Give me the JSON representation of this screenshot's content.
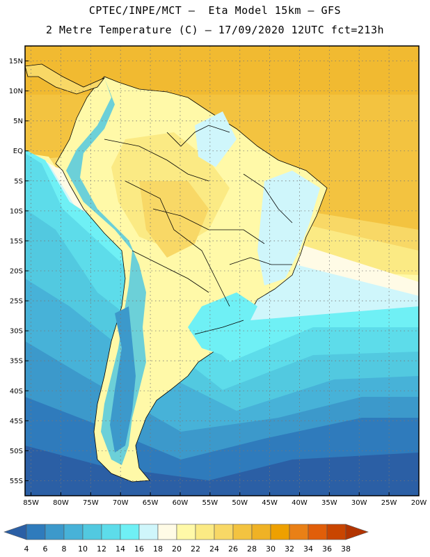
{
  "header": {
    "title_line1": "CPTEC/INPE/MCT –  Eta Model 15km – GFS",
    "title_line2": "2 Metre Temperature (C) – 17/09/2020 12UTC fct=213h"
  },
  "map": {
    "latitude_labels": [
      "15N",
      "10N",
      "5N",
      "EQ",
      "5S",
      "10S",
      "15S",
      "20S",
      "25S",
      "30S",
      "35S",
      "40S",
      "45S",
      "50S",
      "55S"
    ],
    "longitude_labels": [
      "85W",
      "80W",
      "75W",
      "70W",
      "65W",
      "60W",
      "55W",
      "50W",
      "45W",
      "40W",
      "35W",
      "30W",
      "25W",
      "20W"
    ],
    "lat_range": [
      17.5,
      -57.5
    ],
    "lon_range": [
      -86.0,
      -20.0
    ]
  },
  "colorbar": {
    "levels": [
      "4",
      "6",
      "8",
      "10",
      "12",
      "14",
      "16",
      "18",
      "20",
      "22",
      "24",
      "26",
      "28",
      "30",
      "32",
      "34",
      "36",
      "38"
    ],
    "colors": [
      "#2b5fa5",
      "#2f7bbc",
      "#3c99cb",
      "#47b2d8",
      "#52c9e0",
      "#5ddcea",
      "#6ff0f5",
      "#cff6fb",
      "#fffbe6",
      "#fff9a8",
      "#fbea84",
      "#f8d866",
      "#f3c340",
      "#efb225",
      "#eea000",
      "#e98016",
      "#e15e09",
      "#c94500",
      "#b23400"
    ]
  }
}
